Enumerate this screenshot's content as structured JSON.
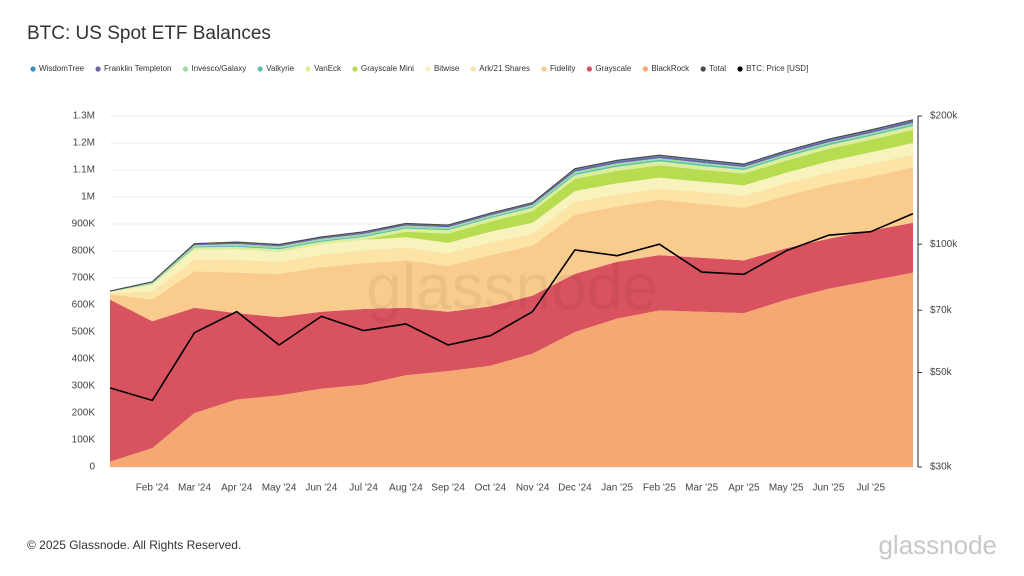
{
  "chart_data": {
    "type": "stacked-area",
    "title": "BTC: US Spot ETF Balances",
    "footer": "© 2025 Glassnode. All Rights Reserved.",
    "logo": "glassnode",
    "watermark": "glassnode",
    "categories": [
      null,
      "Feb '24",
      "Mar '24",
      "Apr '24",
      "May '24",
      "Jun '24",
      "Jul '24",
      "Aug '24",
      "Sep '24",
      "Oct '24",
      "Nov '24",
      "Dec '24",
      "Jan '25",
      "Feb '25",
      "Mar '25",
      "Apr '25",
      "May '25",
      "Jun '25",
      "Jul '25",
      null
    ],
    "ylim": [
      0,
      1300000
    ],
    "yticks": [
      0,
      {
        "value": 100000,
        "label": "100K"
      },
      {
        "value": 200000,
        "label": "200K"
      },
      {
        "value": 300000,
        "label": "300K"
      },
      {
        "value": 400000,
        "label": "400K"
      },
      {
        "value": 500000,
        "label": "500K"
      },
      {
        "value": 600000,
        "label": "600K"
      },
      {
        "value": 700000,
        "label": "700K"
      },
      {
        "value": 800000,
        "label": "800K"
      },
      {
        "value": 900000,
        "label": "900K"
      },
      {
        "value": 1000000,
        "label": "1M"
      },
      {
        "value": 1100000,
        "label": "1.1M"
      },
      {
        "value": 1200000,
        "label": "1.2M"
      },
      {
        "value": 1300000,
        "label": "1.3M"
      }
    ],
    "y2lim": [
      30000,
      200000
    ],
    "y2ticks": [
      {
        "value": 30000,
        "label": "$30k"
      },
      {
        "value": 50000,
        "label": "$50k"
      },
      {
        "value": 70000,
        "label": "$70k"
      },
      {
        "value": 100000,
        "label": "$100k"
      },
      {
        "value": 200000,
        "label": "$200k"
      }
    ],
    "y2scale": "log",
    "grid": true,
    "series": [
      {
        "name": "WisdomTree",
        "type": "area",
        "color": "#3a8fc4",
        "values": [
          300,
          1000,
          2000,
          3000,
          3000,
          3000,
          3000,
          3000,
          3000,
          3000,
          3000,
          4000,
          4000,
          4000,
          4000,
          4000,
          4000,
          4000,
          4000,
          4000
        ]
      },
      {
        "name": "Franklin Templeton",
        "type": "area",
        "color": "#6c62a6",
        "values": [
          500,
          1000,
          3000,
          4000,
          4000,
          4000,
          5000,
          5000,
          5000,
          5000,
          5000,
          7000,
          7000,
          7000,
          7000,
          7000,
          7000,
          7000,
          7000,
          8000
        ]
      },
      {
        "name": "Invesco/Galaxy",
        "type": "area",
        "color": "#a3d9a5",
        "values": [
          1000,
          3000,
          5000,
          6000,
          6000,
          6000,
          6000,
          6000,
          6000,
          6000,
          6000,
          7000,
          7000,
          6000,
          6000,
          5000,
          5000,
          5000,
          5000,
          5000
        ]
      },
      {
        "name": "Valkyrie",
        "type": "area",
        "color": "#5cc2ab",
        "values": [
          500,
          2000,
          4000,
          5000,
          5000,
          5000,
          5000,
          5000,
          5000,
          5000,
          5000,
          6000,
          6000,
          6000,
          6000,
          6000,
          6000,
          6000,
          6000,
          6000
        ]
      },
      {
        "name": "VanEck",
        "type": "area",
        "color": "#dcee9c",
        "values": [
          1000,
          4000,
          8000,
          9000,
          10000,
          10000,
          11000,
          12000,
          12000,
          12000,
          13000,
          14000,
          15000,
          15000,
          14000,
          13000,
          14000,
          14000,
          14000,
          15000
        ]
      },
      {
        "name": "Grayscale Mini",
        "type": "area",
        "color": "#b8dc50",
        "values": [
          0,
          0,
          0,
          0,
          0,
          0,
          0,
          20000,
          35000,
          38000,
          42000,
          45000,
          46000,
          45000,
          44000,
          44000,
          45000,
          46000,
          47000,
          48000
        ]
      },
      {
        "name": "Bitwise",
        "type": "area",
        "color": "#f8f3bc",
        "values": [
          3000,
          25000,
          35000,
          38000,
          36000,
          37000,
          38000,
          38000,
          38000,
          39000,
          40000,
          39000,
          41000,
          40000,
          38000,
          38000,
          39000,
          40000,
          42000,
          43000
        ]
      },
      {
        "name": "Ark/21 Shares",
        "type": "area",
        "color": "#fbe4a6",
        "values": [
          5000,
          30000,
          45000,
          48000,
          45000,
          47000,
          48000,
          48000,
          47000,
          47000,
          45000,
          48000,
          45000,
          42000,
          44000,
          45000,
          46000,
          47000,
          48000,
          47000
        ]
      },
      {
        "name": "Fidelity",
        "type": "area",
        "color": "#f9cb8d",
        "values": [
          20000,
          80000,
          135000,
          150000,
          160000,
          165000,
          170000,
          175000,
          170000,
          190000,
          185000,
          220000,
          205000,
          205000,
          200000,
          195000,
          195000,
          200000,
          200000,
          205000
        ]
      },
      {
        "name": "Grayscale",
        "type": "area",
        "color": "#d9525f",
        "values": [
          600000,
          470000,
          390000,
          320000,
          290000,
          285000,
          280000,
          250000,
          220000,
          220000,
          215000,
          215000,
          210000,
          205000,
          200000,
          195000,
          190000,
          185000,
          185000,
          185000
        ]
      },
      {
        "name": "BlackRock",
        "type": "area",
        "color": "#f5a872",
        "values": [
          20000,
          70000,
          200000,
          250000,
          265000,
          290000,
          305000,
          340000,
          355000,
          375000,
          420000,
          500000,
          550000,
          580000,
          575000,
          570000,
          620000,
          660000,
          690000,
          720000
        ]
      },
      {
        "name": "Total",
        "type": "line",
        "color": "#4a4a4a",
        "values": [
          651300,
          686000,
          827000,
          833000,
          824000,
          852000,
          871000,
          902000,
          896000,
          940000,
          979000,
          1105000,
          1136000,
          1155000,
          1138000,
          1122000,
          1171000,
          1214000,
          1248000,
          1286000
        ]
      },
      {
        "name": "BTC: Price [USD]",
        "type": "line",
        "axis": "y2",
        "color": "#000000",
        "values": [
          46000,
          43000,
          62000,
          69500,
          58000,
          67700,
          62700,
          65000,
          58000,
          61000,
          69500,
          97000,
          94000,
          100000,
          86000,
          85000,
          96500,
          105000,
          107000,
          118000
        ]
      }
    ]
  }
}
